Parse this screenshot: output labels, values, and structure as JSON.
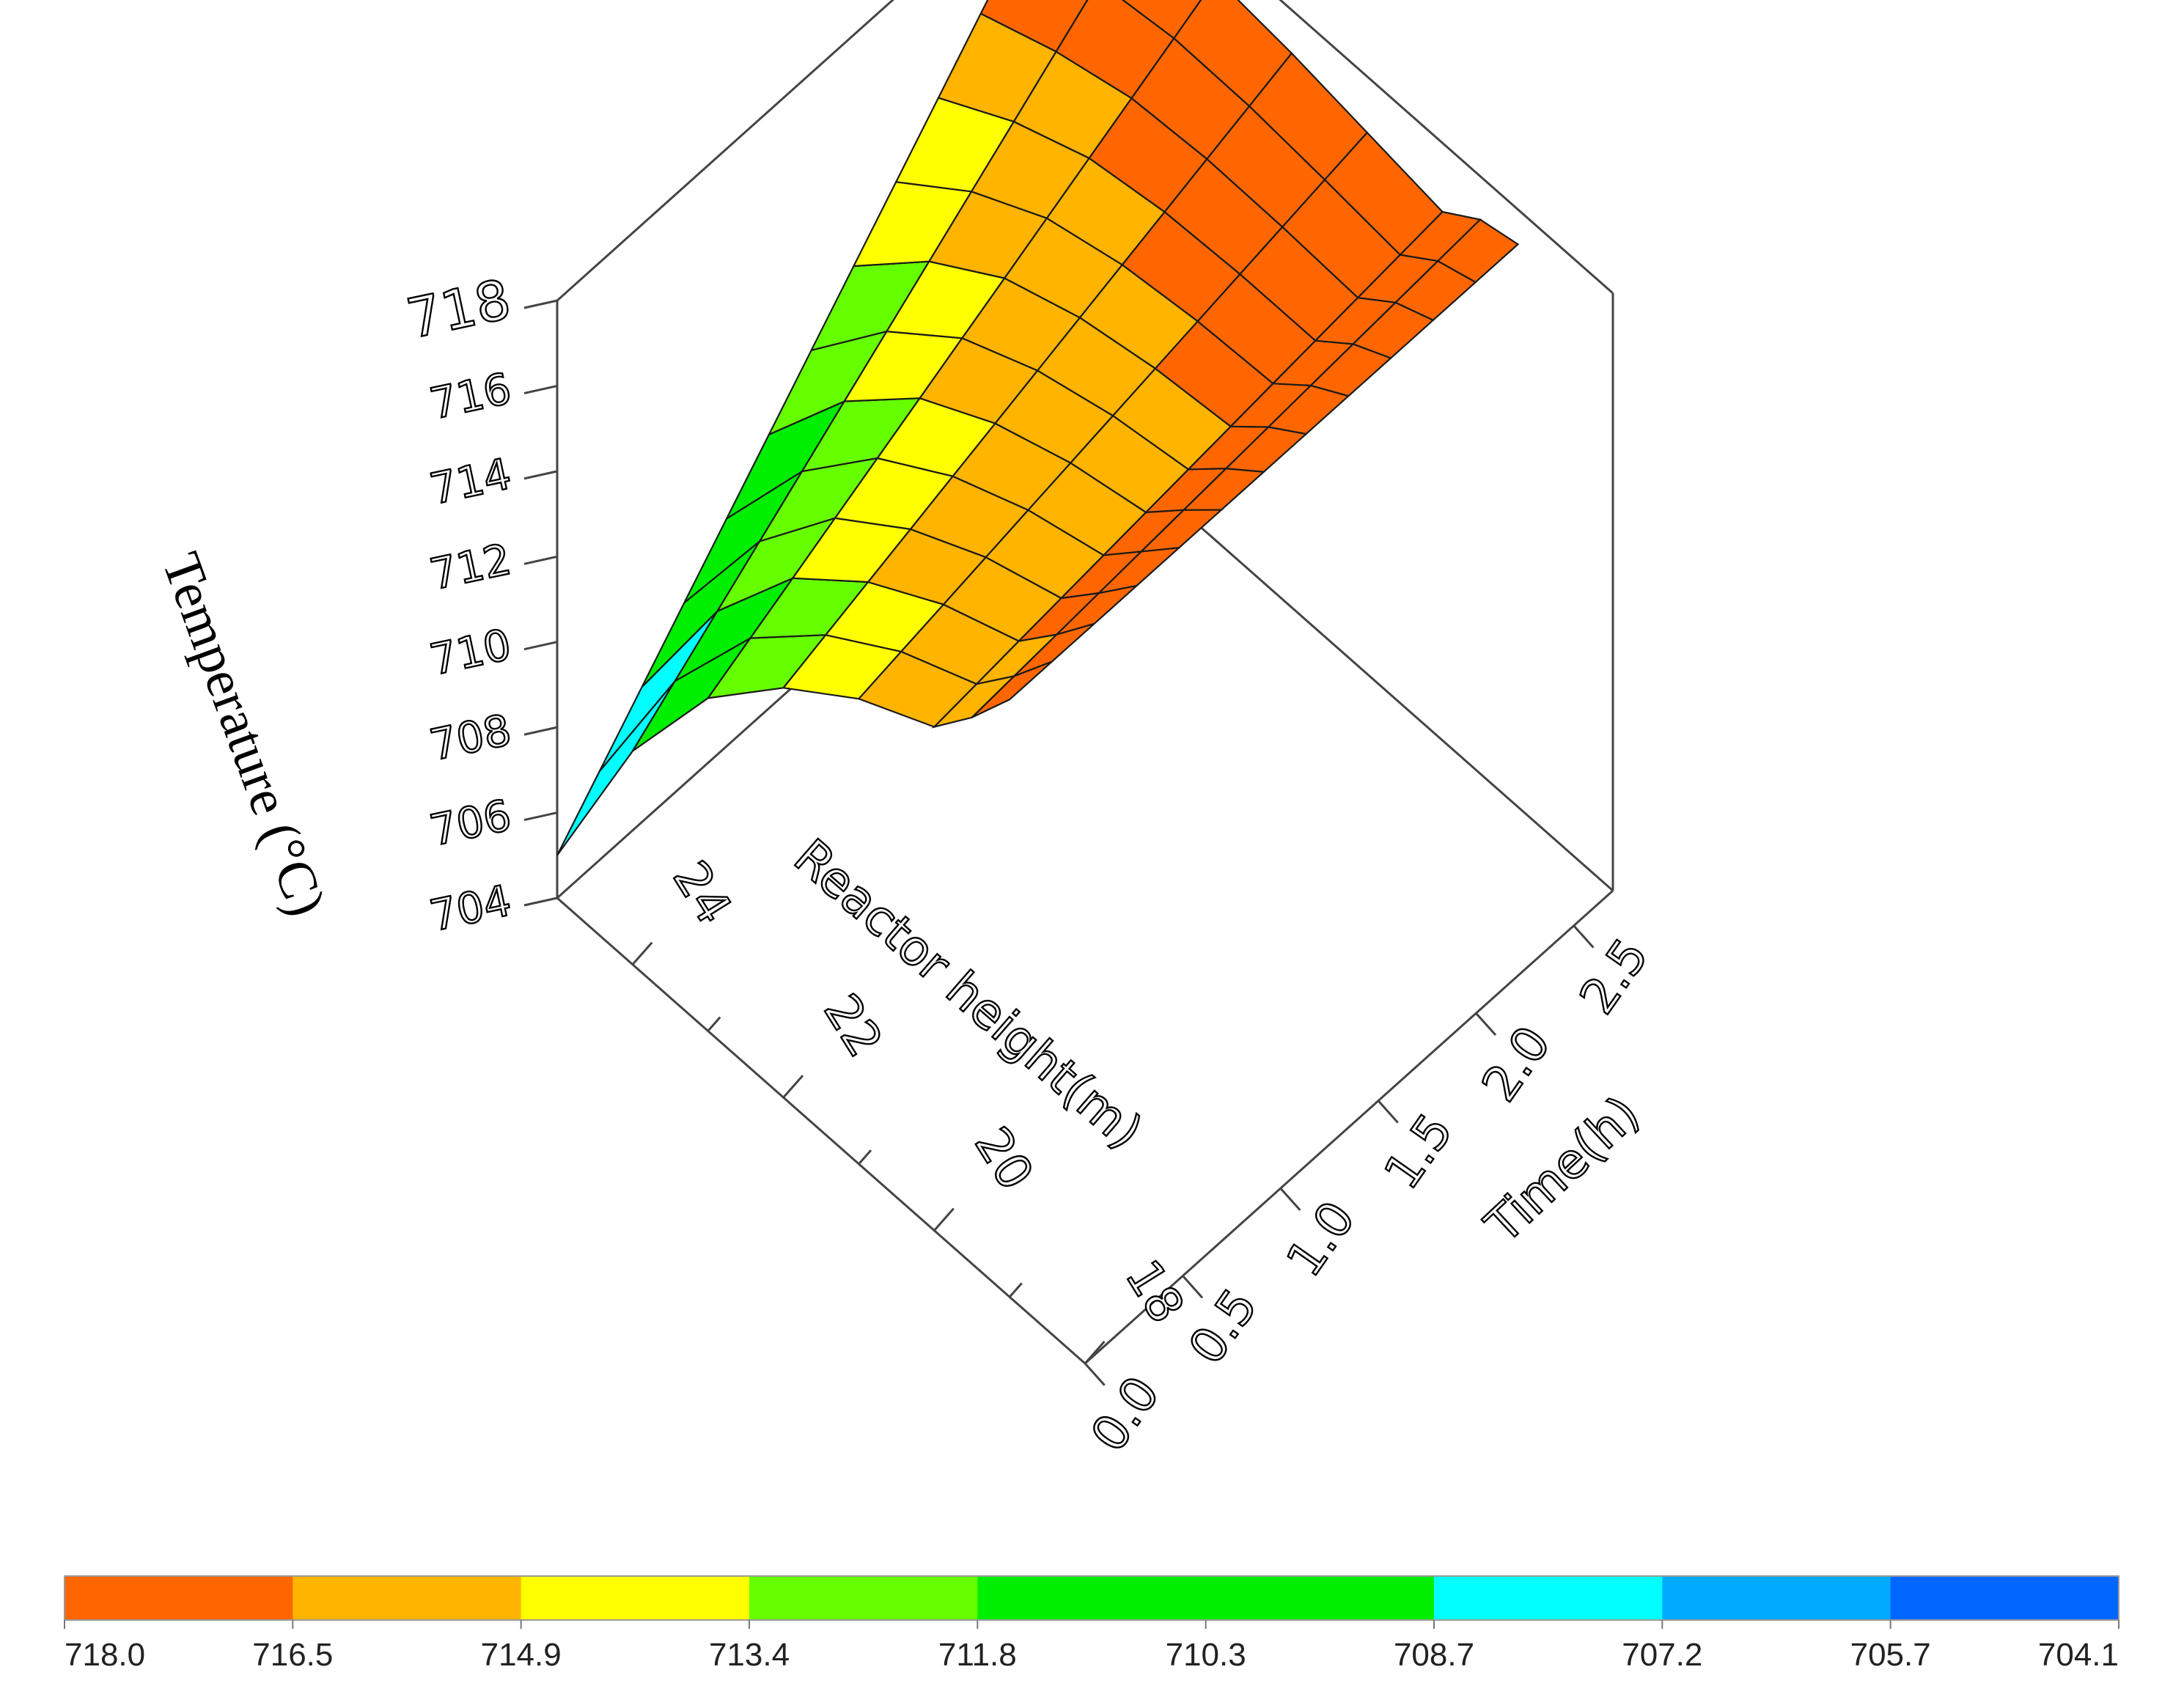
{
  "chart_data": {
    "type": "surface3d",
    "title": "",
    "xlabel": "Reactor height(m)",
    "ylabel": "Time(h)",
    "zlabel": "Temperature (°C)",
    "x_ticks": [
      "18",
      "20",
      "22",
      "24"
    ],
    "y_ticks": [
      "0.0",
      "0.5",
      "1.0",
      "1.5",
      "2.0",
      "2.5"
    ],
    "z_ticks": [
      "704",
      "706",
      "708",
      "710",
      "712",
      "714",
      "716",
      "718"
    ],
    "xlim": [
      18,
      25
    ],
    "ylim": [
      0,
      2.7
    ],
    "zlim": [
      704,
      718
    ],
    "surface": {
      "height": [
        25,
        24,
        23,
        22,
        21,
        20,
        19.5,
        19
      ],
      "time": [
        0.0,
        2.6
      ],
      "temperature": [
        [
          705.0,
          718.0
        ],
        [
          709.0,
          718.0
        ],
        [
          711.8,
          718.0
        ],
        [
          713.6,
          717.8
        ],
        [
          714.9,
          717.5
        ],
        [
          715.8,
          717.2
        ],
        [
          716.8,
          717.8
        ],
        [
          718.0,
          718.0
        ]
      ]
    },
    "colorbar": {
      "labels": [
        "718.0",
        "716.5",
        "714.9",
        "713.4",
        "711.8",
        "710.3",
        "708.7",
        "707.2",
        "705.7",
        "704.1"
      ],
      "colors": [
        "#FF6600",
        "#FFB400",
        "#FFFF00",
        "#66FF00",
        "#00EE00",
        "#00EE00",
        "#00FFFF",
        "#00AAFF",
        "#0066FF",
        "#0033EE"
      ]
    }
  }
}
